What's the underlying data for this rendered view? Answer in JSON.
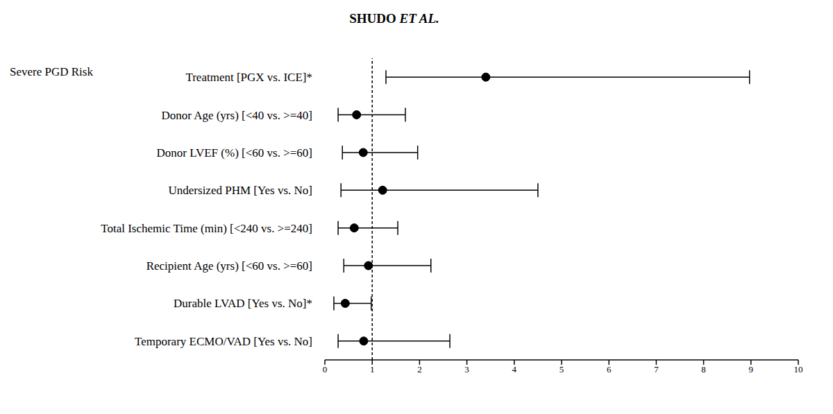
{
  "chart_data": {
    "type": "forest",
    "title": "SHUDO ET AL.",
    "subtitle": "Severe PGD Risk",
    "categories": [
      "Treatment [PGX vs. ICE]*",
      "Donor Age (yrs) [<40 vs. >=40]",
      "Donor LVEF (%) [<60 vs. >=60]",
      "Undersized PHM [Yes vs. No]",
      "Total Ischemic Time (min) [<240 vs. >=240]",
      "Recipient Age (yrs) [<60 vs. >=60]",
      "Durable LVAD [Yes vs. No]*",
      "Temporary ECMO/VAD [Yes vs. No]"
    ],
    "values": [
      3.4,
      0.67,
      0.81,
      1.22,
      0.62,
      0.92,
      0.43,
      0.82
    ],
    "ci_low": [
      1.29,
      0.28,
      0.37,
      0.34,
      0.28,
      0.4,
      0.19,
      0.28
    ],
    "ci_high": [
      8.97,
      1.7,
      1.96,
      4.5,
      1.54,
      2.24,
      0.98,
      2.64
    ],
    "color": "#000000",
    "xlim": [
      0,
      10
    ],
    "xticks": [
      0,
      1,
      2,
      3,
      4,
      5,
      6,
      7,
      8,
      9,
      10
    ],
    "reference_line": 1,
    "grid": false
  }
}
